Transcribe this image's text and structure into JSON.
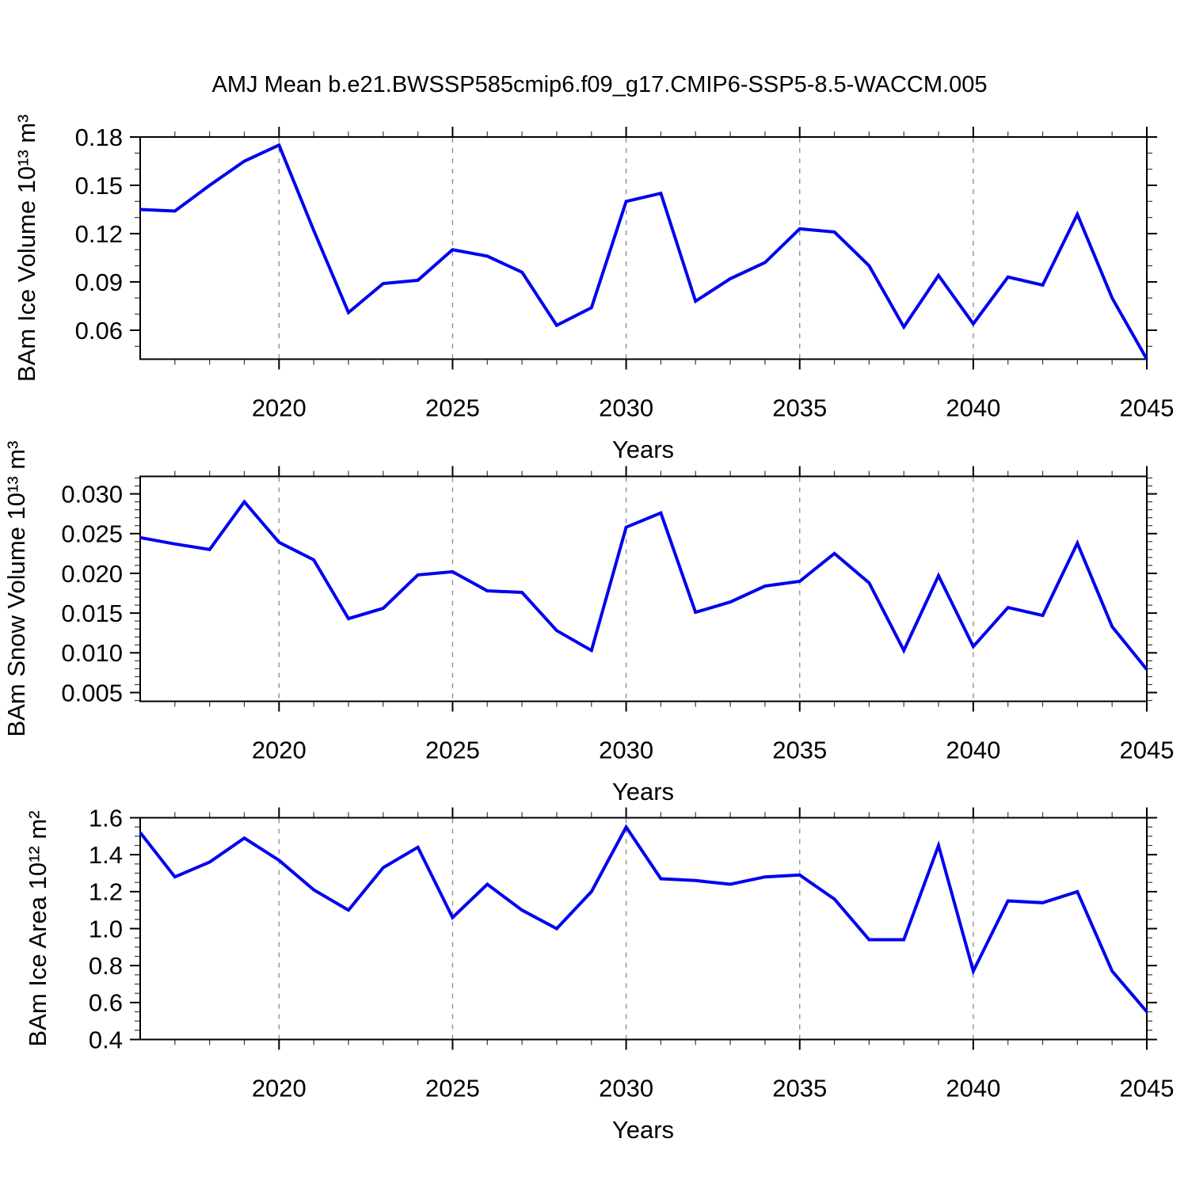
{
  "title": "AMJ Mean b.e21.BWSSP585cmip6.f09_g17.CMIP6-SSP5-8.5-WACCM.005",
  "line_color": "#0000EE",
  "chart_data": [
    {
      "type": "line",
      "name": "bam-ice-volume",
      "ylabel": "BAm Ice Volume 10¹³ m³",
      "xlabel": "Years",
      "line_color": "#0000EE",
      "x": [
        2016,
        2017,
        2018,
        2019,
        2020,
        2021,
        2022,
        2023,
        2024,
        2025,
        2026,
        2027,
        2028,
        2029,
        2030,
        2031,
        2032,
        2033,
        2034,
        2035,
        2036,
        2037,
        2038,
        2039,
        2040,
        2041,
        2042,
        2043,
        2044,
        2045
      ],
      "values": [
        0.135,
        0.134,
        0.15,
        0.165,
        0.175,
        0.122,
        0.071,
        0.089,
        0.091,
        0.11,
        0.106,
        0.096,
        0.063,
        0.074,
        0.14,
        0.145,
        0.078,
        0.092,
        0.102,
        0.123,
        0.121,
        0.1,
        0.062,
        0.094,
        0.064,
        0.093,
        0.088,
        0.132,
        0.08,
        0.042
      ],
      "xlim": [
        2016,
        2045
      ],
      "ylim": [
        0.042,
        0.18
      ],
      "x_major_ticks": [
        2020,
        2025,
        2030,
        2035,
        2040,
        2045
      ],
      "x_tick_labels": [
        "2020",
        "2025",
        "2030",
        "2035",
        "2040",
        "2045"
      ],
      "x_minor_step": 1,
      "grid_x": [
        2020,
        2025,
        2030,
        2035,
        2040
      ],
      "y_major_ticks": [
        0.06,
        0.09,
        0.12,
        0.15,
        0.18
      ],
      "y_tick_labels": [
        "0.06",
        "0.09",
        "0.12",
        "0.15",
        "0.18"
      ],
      "y_minor_step": 0.01,
      "grid": "vertical-dashed",
      "legend": "none"
    },
    {
      "type": "line",
      "name": "bam-snow-volume",
      "ylabel": "BAm Snow Volume 10¹³ m³",
      "xlabel": "Years",
      "line_color": "#0000EE",
      "x": [
        2016,
        2017,
        2018,
        2019,
        2020,
        2021,
        2022,
        2023,
        2024,
        2025,
        2026,
        2027,
        2028,
        2029,
        2030,
        2031,
        2032,
        2033,
        2034,
        2035,
        2036,
        2037,
        2038,
        2039,
        2040,
        2041,
        2042,
        2043,
        2044,
        2045
      ],
      "values": [
        0.0245,
        0.0237,
        0.023,
        0.029,
        0.0239,
        0.0217,
        0.0143,
        0.0156,
        0.0198,
        0.0202,
        0.0178,
        0.0176,
        0.0128,
        0.0103,
        0.0258,
        0.0276,
        0.0151,
        0.0164,
        0.0184,
        0.019,
        0.0225,
        0.0188,
        0.0103,
        0.0197,
        0.0108,
        0.0157,
        0.0147,
        0.0238,
        0.0133,
        0.0079
      ],
      "xlim": [
        2016,
        2045
      ],
      "ylim": [
        0.0039,
        0.0322
      ],
      "x_major_ticks": [
        2020,
        2025,
        2030,
        2035,
        2040,
        2045
      ],
      "x_tick_labels": [
        "2020",
        "2025",
        "2030",
        "2035",
        "2040",
        "2045"
      ],
      "x_minor_step": 1,
      "grid_x": [
        2020,
        2025,
        2030,
        2035,
        2040
      ],
      "y_major_ticks": [
        0.005,
        0.01,
        0.015,
        0.02,
        0.025,
        0.03
      ],
      "y_tick_labels": [
        "0.005",
        "0.010",
        "0.015",
        "0.020",
        "0.025",
        "0.030"
      ],
      "y_minor_step": 0.001,
      "grid": "vertical-dashed",
      "legend": "none"
    },
    {
      "type": "line",
      "name": "bam-ice-area",
      "ylabel": "BAm Ice Area 10¹² m²",
      "xlabel": "Years",
      "line_color": "#0000EE",
      "x": [
        2016,
        2017,
        2018,
        2019,
        2020,
        2021,
        2022,
        2023,
        2024,
        2025,
        2026,
        2027,
        2028,
        2029,
        2030,
        2031,
        2032,
        2033,
        2034,
        2035,
        2036,
        2037,
        2038,
        2039,
        2040,
        2041,
        2042,
        2043,
        2044,
        2045
      ],
      "values": [
        1.52,
        1.28,
        1.36,
        1.49,
        1.37,
        1.21,
        1.1,
        1.33,
        1.44,
        1.06,
        1.24,
        1.1,
        1.0,
        1.2,
        1.55,
        1.27,
        1.26,
        1.24,
        1.28,
        1.29,
        1.16,
        0.94,
        0.94,
        1.45,
        0.77,
        1.15,
        1.14,
        1.2,
        0.77,
        0.55
      ],
      "xlim": [
        2016,
        2045
      ],
      "ylim": [
        0.4,
        1.6
      ],
      "x_major_ticks": [
        2020,
        2025,
        2030,
        2035,
        2040,
        2045
      ],
      "x_tick_labels": [
        "2020",
        "2025",
        "2030",
        "2035",
        "2040",
        "2045"
      ],
      "x_minor_step": 1,
      "grid_x": [
        2020,
        2025,
        2030,
        2035,
        2040
      ],
      "y_major_ticks": [
        0.4,
        0.6,
        0.8,
        1.0,
        1.2,
        1.4,
        1.6
      ],
      "y_tick_labels": [
        "0.4",
        "0.6",
        "0.8",
        "1.0",
        "1.2",
        "1.4",
        "1.6"
      ],
      "y_minor_step": 0.05,
      "grid": "vertical-dashed",
      "legend": "none"
    }
  ]
}
